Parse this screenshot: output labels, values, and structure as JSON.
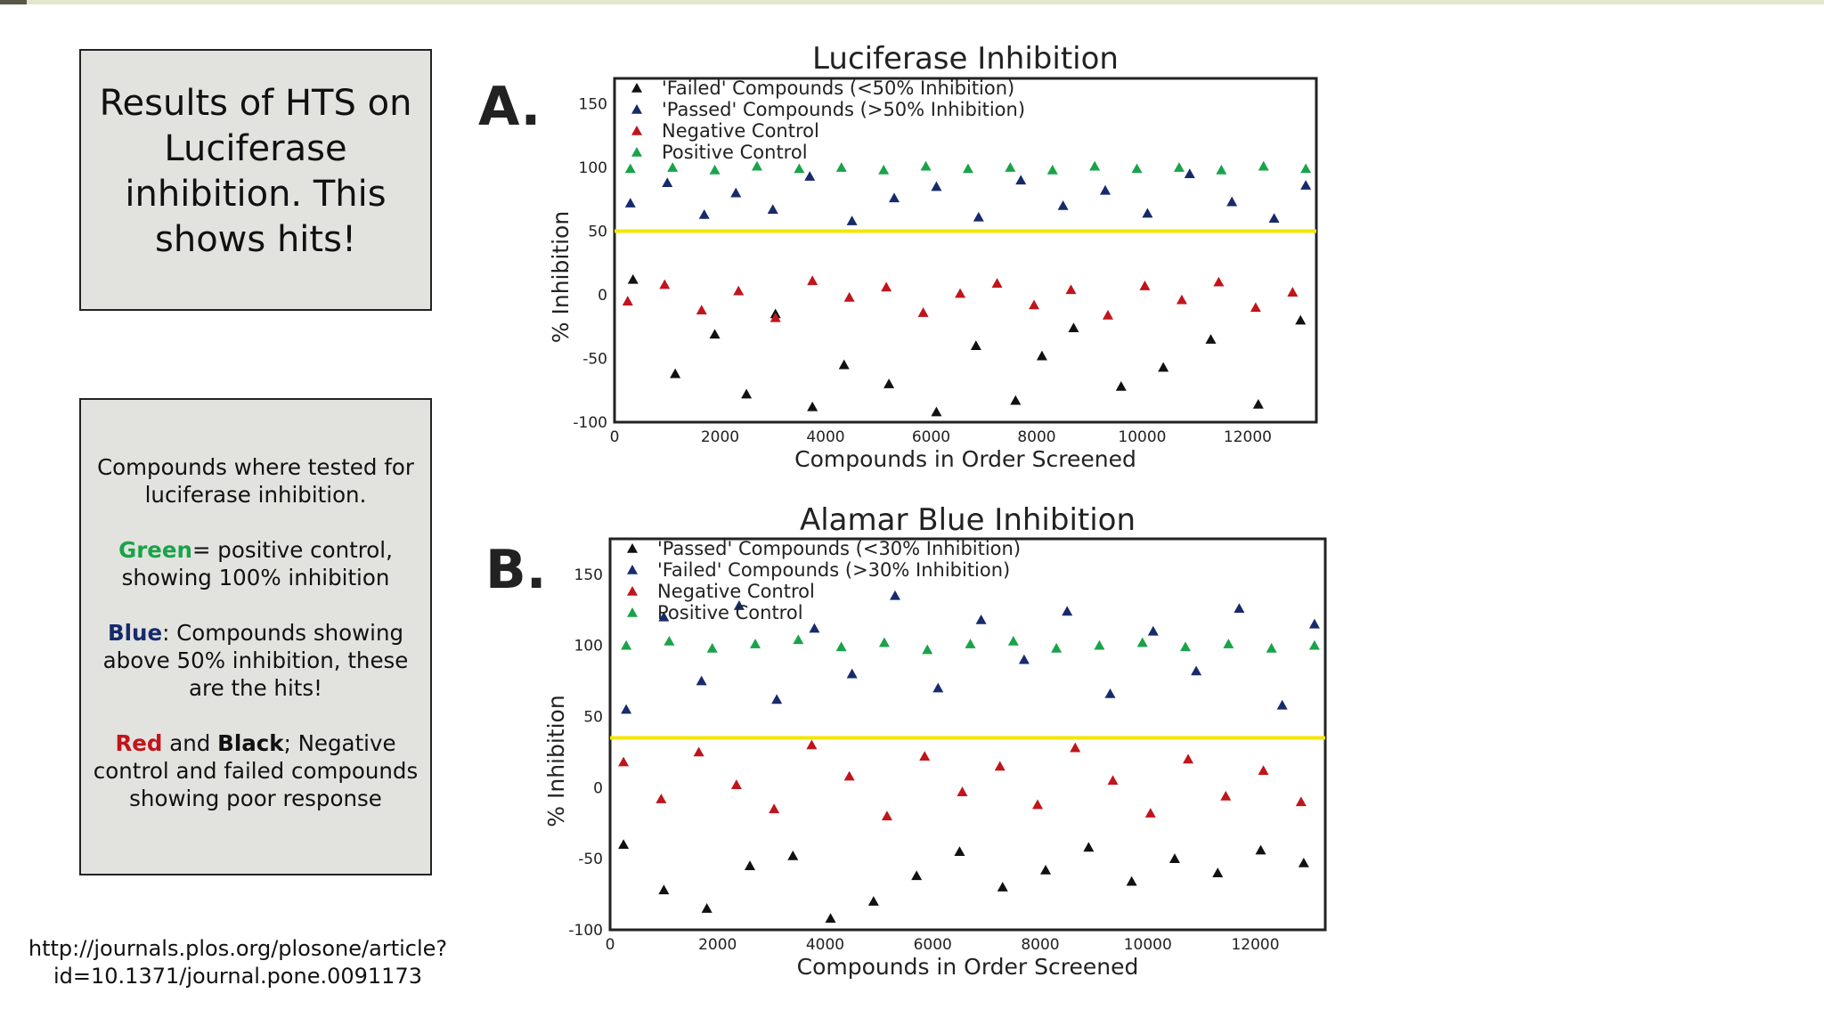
{
  "colors": {
    "green": "#1aa34a",
    "blue": "#172a6b",
    "red": "#c0151b",
    "black": "#111111",
    "threshold": "#f2e600"
  },
  "box1": {
    "text": "Results of HTS on Luciferase inhibition. This shows hits!"
  },
  "box2": {
    "p1": "Compounds where tested for luciferase inhibition.",
    "p2_kw": "Green",
    "p2_rest": "= positive control, showing 100% inhibition",
    "p3_kw": "Blue",
    "p3_rest": ": Compounds showing above 50% inhibition, these are the hits!",
    "p4_kw1": "Red",
    "p4_mid": " and ",
    "p4_kw2": "Black",
    "p4_rest": "; Negative control and failed compounds showing poor response"
  },
  "citation": "http://journals.plos.org/plosone/article?id=10.1371/journal.pone.0091173",
  "panel_letters": {
    "a": "A.",
    "b": "B."
  },
  "chart_data": [
    {
      "type": "scatter",
      "panel": "A.",
      "title": "Luciferase Inhibition",
      "xlabel": "Compounds in Order Screened",
      "ylabel": "% Inhibition",
      "xlim": [
        0,
        13300
      ],
      "ylim": [
        -100,
        170
      ],
      "xticks": [
        "0",
        "2000",
        "4000",
        "6000",
        "8000",
        "10000",
        "12000"
      ],
      "yticks": [
        "-100",
        "-50",
        "0",
        "50",
        "100",
        "150"
      ],
      "threshold": 50,
      "legend_position": "top-left",
      "series": [
        {
          "name": "'Failed' Compounds (<50% Inhibition)",
          "color": "#111111",
          "points": [
            [
              350,
              12
            ],
            [
              1150,
              -62
            ],
            [
              1900,
              -31
            ],
            [
              2500,
              -78
            ],
            [
              3050,
              -15
            ],
            [
              3750,
              -88
            ],
            [
              4350,
              -55
            ],
            [
              5200,
              -70
            ],
            [
              6100,
              -92
            ],
            [
              6850,
              -40
            ],
            [
              7600,
              -83
            ],
            [
              8100,
              -48
            ],
            [
              8700,
              -26
            ],
            [
              9600,
              -72
            ],
            [
              10400,
              -57
            ],
            [
              11300,
              -35
            ],
            [
              12200,
              -86
            ],
            [
              13000,
              -20
            ]
          ]
        },
        {
          "name": "'Passed' Compounds (>50% Inhibition)",
          "color": "#172a6b",
          "points": [
            [
              300,
              72
            ],
            [
              1000,
              88
            ],
            [
              1700,
              63
            ],
            [
              2300,
              80
            ],
            [
              3000,
              67
            ],
            [
              3700,
              93
            ],
            [
              4500,
              58
            ],
            [
              5300,
              76
            ],
            [
              6100,
              85
            ],
            [
              6900,
              61
            ],
            [
              7700,
              90
            ],
            [
              8500,
              70
            ],
            [
              9300,
              82
            ],
            [
              10100,
              64
            ],
            [
              10900,
              95
            ],
            [
              11700,
              73
            ],
            [
              12500,
              60
            ],
            [
              13100,
              86
            ]
          ]
        },
        {
          "name": "Negative Control",
          "color": "#c0151b",
          "points": [
            [
              250,
              -5
            ],
            [
              950,
              8
            ],
            [
              1650,
              -12
            ],
            [
              2350,
              3
            ],
            [
              3050,
              -18
            ],
            [
              3750,
              11
            ],
            [
              4450,
              -2
            ],
            [
              5150,
              6
            ],
            [
              5850,
              -14
            ],
            [
              6550,
              1
            ],
            [
              7250,
              9
            ],
            [
              7950,
              -8
            ],
            [
              8650,
              4
            ],
            [
              9350,
              -16
            ],
            [
              10050,
              7
            ],
            [
              10750,
              -4
            ],
            [
              11450,
              10
            ],
            [
              12150,
              -10
            ],
            [
              12850,
              2
            ]
          ]
        },
        {
          "name": "Positive Control",
          "color": "#1aa34a",
          "points": [
            [
              300,
              99
            ],
            [
              1100,
              100
            ],
            [
              1900,
              98
            ],
            [
              2700,
              101
            ],
            [
              3500,
              99
            ],
            [
              4300,
              100
            ],
            [
              5100,
              98
            ],
            [
              5900,
              101
            ],
            [
              6700,
              99
            ],
            [
              7500,
              100
            ],
            [
              8300,
              98
            ],
            [
              9100,
              101
            ],
            [
              9900,
              99
            ],
            [
              10700,
              100
            ],
            [
              11500,
              98
            ],
            [
              12300,
              101
            ],
            [
              13100,
              99
            ]
          ]
        }
      ]
    },
    {
      "type": "scatter",
      "panel": "B.",
      "title": "Alamar Blue Inhibition",
      "xlabel": "Compounds in Order Screened",
      "ylabel": "% Inhibition",
      "xlim": [
        0,
        13300
      ],
      "ylim": [
        -100,
        175
      ],
      "xticks": [
        "0",
        "2000",
        "4000",
        "6000",
        "8000",
        "10000",
        "12000"
      ],
      "yticks": [
        "-100",
        "-50",
        "0",
        "50",
        "100",
        "150"
      ],
      "threshold": 35,
      "legend_position": "top-left",
      "series": [
        {
          "name": "'Passed' Compounds (<30% Inhibition)",
          "color": "#111111",
          "points": [
            [
              250,
              -40
            ],
            [
              1000,
              -72
            ],
            [
              1800,
              -85
            ],
            [
              2600,
              -55
            ],
            [
              3400,
              -48
            ],
            [
              4100,
              -92
            ],
            [
              4900,
              -80
            ],
            [
              5700,
              -62
            ],
            [
              6500,
              -45
            ],
            [
              7300,
              -70
            ],
            [
              8100,
              -58
            ],
            [
              8900,
              -42
            ],
            [
              9700,
              -66
            ],
            [
              10500,
              -50
            ],
            [
              11300,
              -60
            ],
            [
              12100,
              -44
            ],
            [
              12900,
              -53
            ]
          ]
        },
        {
          "name": "'Failed' Compounds (>30% Inhibition)",
          "color": "#172a6b",
          "points": [
            [
              300,
              55
            ],
            [
              1000,
              120
            ],
            [
              1700,
              75
            ],
            [
              2400,
              128
            ],
            [
              3100,
              62
            ],
            [
              3800,
              112
            ],
            [
              4500,
              80
            ],
            [
              5300,
              135
            ],
            [
              6100,
              70
            ],
            [
              6900,
              118
            ],
            [
              7700,
              90
            ],
            [
              8500,
              124
            ],
            [
              9300,
              66
            ],
            [
              10100,
              110
            ],
            [
              10900,
              82
            ],
            [
              11700,
              126
            ],
            [
              12500,
              58
            ],
            [
              13100,
              115
            ]
          ]
        },
        {
          "name": "Negative Control",
          "color": "#c0151b",
          "points": [
            [
              250,
              18
            ],
            [
              950,
              -8
            ],
            [
              1650,
              25
            ],
            [
              2350,
              2
            ],
            [
              3050,
              -15
            ],
            [
              3750,
              30
            ],
            [
              4450,
              8
            ],
            [
              5150,
              -20
            ],
            [
              5850,
              22
            ],
            [
              6550,
              -3
            ],
            [
              7250,
              15
            ],
            [
              7950,
              -12
            ],
            [
              8650,
              28
            ],
            [
              9350,
              5
            ],
            [
              10050,
              -18
            ],
            [
              10750,
              20
            ],
            [
              11450,
              -6
            ],
            [
              12150,
              12
            ],
            [
              12850,
              -10
            ]
          ]
        },
        {
          "name": "Positive Control",
          "color": "#1aa34a",
          "points": [
            [
              300,
              100
            ],
            [
              1100,
              103
            ],
            [
              1900,
              98
            ],
            [
              2700,
              101
            ],
            [
              3500,
              104
            ],
            [
              4300,
              99
            ],
            [
              5100,
              102
            ],
            [
              5900,
              97
            ],
            [
              6700,
              101
            ],
            [
              7500,
              103
            ],
            [
              8300,
              98
            ],
            [
              9100,
              100
            ],
            [
              9900,
              102
            ],
            [
              10700,
              99
            ],
            [
              11500,
              101
            ],
            [
              12300,
              98
            ],
            [
              13100,
              100
            ]
          ]
        }
      ]
    }
  ]
}
